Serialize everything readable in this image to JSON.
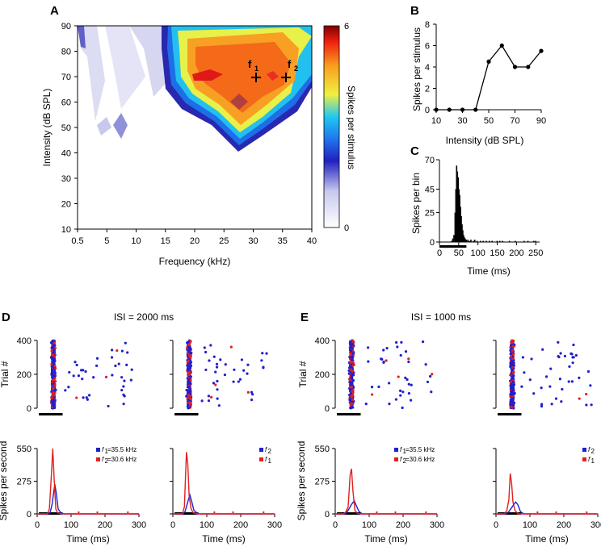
{
  "chart_data": [
    {
      "panel": "A",
      "type": "heatmap",
      "xlabel": "Frequency (kHz)",
      "ylabel": "Intensity (dB SPL)",
      "xticks": [
        "0.5",
        "5",
        "10",
        "15",
        "20",
        "25",
        "30",
        "35",
        "40"
      ],
      "yticks": [
        "10",
        "20",
        "30",
        "40",
        "50",
        "60",
        "70",
        "80",
        "90"
      ],
      "colorbar_label": "Spikes per stimulus",
      "colorbar_min": "0",
      "colorbar_max": "6",
      "annotations": [
        {
          "label": "f",
          "sub": "1"
        },
        {
          "label": "f",
          "sub": "2"
        }
      ]
    },
    {
      "panel": "B",
      "type": "line",
      "xlabel": "Intensity (dB SPL)",
      "ylabel": "Spikes per stimulus",
      "x": [
        10,
        20,
        30,
        40,
        50,
        60,
        70,
        80,
        90
      ],
      "y": [
        0,
        0,
        0,
        0,
        4.5,
        6,
        4,
        4,
        5.5
      ],
      "xticks": [
        "10",
        "30",
        "50",
        "70",
        "90"
      ],
      "yticks": [
        "0",
        "2",
        "4",
        "6",
        "8"
      ],
      "xlim": [
        10,
        90
      ],
      "ylim": [
        0,
        8
      ]
    },
    {
      "panel": "C",
      "type": "bar",
      "xlabel": "Time (ms)",
      "ylabel": "Spikes per bin",
      "xticks": [
        "0",
        "50",
        "100",
        "150",
        "200",
        "250"
      ],
      "yticks": [
        "0",
        "25",
        "45",
        "70"
      ],
      "xlim": [
        0,
        260
      ],
      "ylim": [
        0,
        70
      ],
      "bins": [
        [
          30,
          1
        ],
        [
          33,
          3
        ],
        [
          36,
          6
        ],
        [
          39,
          25
        ],
        [
          41,
          45
        ],
        [
          43,
          65
        ],
        [
          45,
          60
        ],
        [
          47,
          55
        ],
        [
          49,
          45
        ],
        [
          51,
          40
        ],
        [
          53,
          30
        ],
        [
          55,
          22
        ],
        [
          57,
          15
        ],
        [
          59,
          10
        ],
        [
          61,
          6
        ],
        [
          63,
          4
        ],
        [
          65,
          3
        ],
        [
          68,
          2
        ],
        [
          72,
          2
        ],
        [
          76,
          1
        ],
        [
          80,
          2
        ],
        [
          86,
          1
        ],
        [
          90,
          2
        ],
        [
          96,
          1
        ],
        [
          105,
          1
        ],
        [
          112,
          1
        ],
        [
          120,
          1
        ],
        [
          128,
          1
        ],
        [
          135,
          1
        ],
        [
          148,
          1
        ],
        [
          155,
          1
        ],
        [
          162,
          1
        ],
        [
          180,
          1
        ],
        [
          195,
          1
        ],
        [
          218,
          1
        ],
        [
          228,
          1
        ],
        [
          243,
          1
        ],
        [
          248,
          1
        ]
      ]
    },
    {
      "panel": "D",
      "type": "scatter",
      "title": "ISI = 2000 ms",
      "raster_ylabel": "Trial #",
      "raster_yticks": [
        "0",
        "200",
        "400"
      ],
      "psth_ylabel": "Spikes per second",
      "psth_yticks": [
        "0",
        "275",
        "550"
      ],
      "xticks": [
        "0",
        "100",
        "200",
        "300"
      ],
      "xlabel": "Time (ms)",
      "left_legend": [
        {
          "label": "f",
          "sub": "1",
          "text": "=35.5 kHz",
          "color": "#1f1fd0"
        },
        {
          "label": "f",
          "sub": "2",
          "text": "=30.6 kHz",
          "color": "#e02020"
        }
      ],
      "right_legend": [
        {
          "label": "f",
          "sub": "2",
          "color": "#1f1fd0"
        },
        {
          "label": "f",
          "sub": "1",
          "color": "#e02020"
        }
      ],
      "psth_left": {
        "red": [
          [
            0,
            0
          ],
          [
            30,
            0
          ],
          [
            36,
            40
          ],
          [
            42,
            330
          ],
          [
            46,
            550
          ],
          [
            50,
            300
          ],
          [
            55,
            40
          ],
          [
            60,
            10
          ],
          [
            70,
            0
          ],
          [
            300,
            0
          ]
        ],
        "blue": [
          [
            0,
            0
          ],
          [
            30,
            0
          ],
          [
            38,
            10
          ],
          [
            44,
            80
          ],
          [
            52,
            250
          ],
          [
            56,
            180
          ],
          [
            62,
            40
          ],
          [
            70,
            10
          ],
          [
            80,
            0
          ],
          [
            300,
            0
          ]
        ]
      },
      "psth_right": {
        "red": [
          [
            0,
            0
          ],
          [
            28,
            0
          ],
          [
            34,
            60
          ],
          [
            40,
            520
          ],
          [
            44,
            420
          ],
          [
            48,
            150
          ],
          [
            54,
            40
          ],
          [
            60,
            10
          ],
          [
            70,
            0
          ],
          [
            300,
            0
          ]
        ],
        "blue": [
          [
            0,
            0
          ],
          [
            30,
            0
          ],
          [
            36,
            20
          ],
          [
            42,
            80
          ],
          [
            50,
            160
          ],
          [
            56,
            100
          ],
          [
            62,
            30
          ],
          [
            72,
            5
          ],
          [
            80,
            0
          ],
          [
            300,
            0
          ]
        ]
      }
    },
    {
      "panel": "E",
      "type": "scatter",
      "title": "ISI = 1000 ms",
      "raster_ylabel": "Trial #",
      "raster_yticks": [
        "0",
        "200",
        "400"
      ],
      "psth_ylabel": "Spikes per second",
      "psth_yticks": [
        "0",
        "275",
        "550"
      ],
      "xticks": [
        "0",
        "100",
        "200",
        "300"
      ],
      "xlabel": "Time (ms)",
      "left_legend": [
        {
          "label": "f",
          "sub": "1",
          "text": "=35.5 kHz",
          "color": "#1f1fd0"
        },
        {
          "label": "f",
          "sub": "2",
          "text": "=30.6 kHz",
          "color": "#e02020"
        }
      ],
      "right_legend": [
        {
          "label": "f",
          "sub": "2",
          "color": "#1f1fd0"
        },
        {
          "label": "f",
          "sub": "1",
          "color": "#e02020"
        }
      ],
      "psth_left": {
        "red": [
          [
            0,
            0
          ],
          [
            25,
            0
          ],
          [
            32,
            20
          ],
          [
            38,
            60
          ],
          [
            44,
            330
          ],
          [
            48,
            380
          ],
          [
            52,
            200
          ],
          [
            58,
            30
          ],
          [
            65,
            5
          ],
          [
            75,
            0
          ],
          [
            300,
            0
          ]
        ],
        "blue": [
          [
            0,
            0
          ],
          [
            30,
            0
          ],
          [
            38,
            30
          ],
          [
            48,
            80
          ],
          [
            56,
            110
          ],
          [
            62,
            70
          ],
          [
            70,
            20
          ],
          [
            80,
            0
          ],
          [
            300,
            0
          ]
        ]
      },
      "psth_right": {
        "red": [
          [
            0,
            0
          ],
          [
            25,
            0
          ],
          [
            32,
            30
          ],
          [
            38,
            120
          ],
          [
            42,
            340
          ],
          [
            46,
            260
          ],
          [
            50,
            100
          ],
          [
            56,
            30
          ],
          [
            65,
            0
          ],
          [
            300,
            0
          ]
        ],
        "blue": [
          [
            0,
            0
          ],
          [
            30,
            0
          ],
          [
            38,
            20
          ],
          [
            48,
            60
          ],
          [
            58,
            100
          ],
          [
            64,
            80
          ],
          [
            72,
            20
          ],
          [
            82,
            0
          ],
          [
            300,
            0
          ]
        ]
      }
    }
  ]
}
